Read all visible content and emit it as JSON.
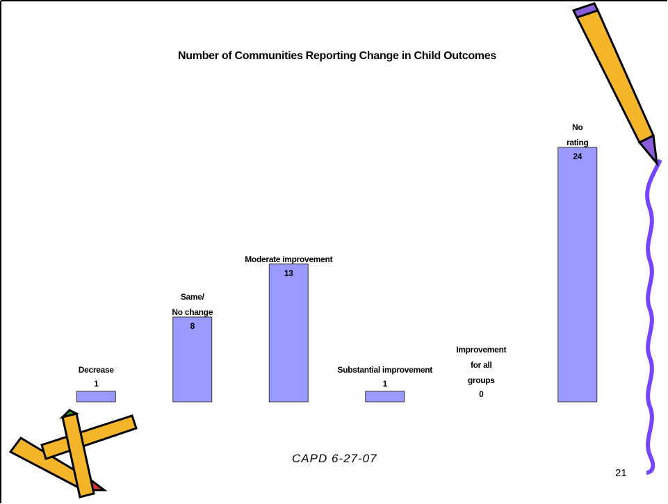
{
  "chart_data": {
    "type": "bar",
    "title": "Number of Communities Reporting Change in Child Outcomes",
    "categories": [
      "Decrease",
      "Same/\nNo change",
      "Moderate improvement",
      "Substantial improvement",
      "Improvement\nfor all\ngroups",
      "No\nrating"
    ],
    "values": [
      1,
      8,
      13,
      1,
      0,
      24
    ],
    "color": "#9999ff",
    "footer": "CAPD 6-27-07",
    "page_number": "21"
  }
}
